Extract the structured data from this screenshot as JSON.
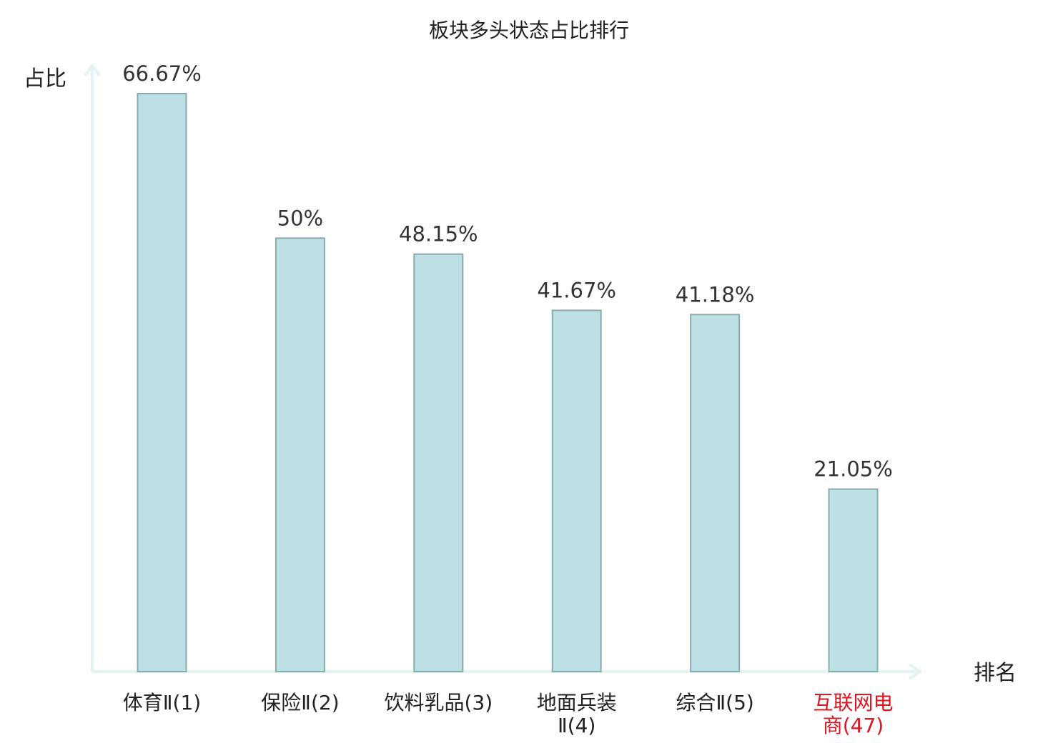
{
  "chart_data": {
    "type": "bar",
    "title": "板块多头状态占比排行",
    "ylabel": "占比",
    "xlabel": "排名",
    "ylim": [
      0,
      70
    ],
    "grid": false,
    "categories": [
      {
        "lines": [
          "体育Ⅱ(1)"
        ],
        "highlight": false
      },
      {
        "lines": [
          "保险Ⅱ(2)"
        ],
        "highlight": false
      },
      {
        "lines": [
          "饮料乳品(3)"
        ],
        "highlight": false
      },
      {
        "lines": [
          "地面兵装",
          "Ⅱ(4)"
        ],
        "highlight": false
      },
      {
        "lines": [
          "综合Ⅱ(5)"
        ],
        "highlight": false
      },
      {
        "lines": [
          "互联网电",
          "商(47)"
        ],
        "highlight": true
      }
    ],
    "values": [
      66.67,
      50,
      48.15,
      41.67,
      41.18,
      21.05
    ],
    "value_labels": [
      "66.67%",
      "50%",
      "48.15%",
      "41.67%",
      "41.18%",
      "21.05%"
    ],
    "colors": {
      "bar_fill": "#bce0e3",
      "bar_stroke": "#8aabae",
      "axis": "#e2f3f1",
      "label": "#222222",
      "value_label": "#333333",
      "highlight": "#e0151f"
    }
  }
}
